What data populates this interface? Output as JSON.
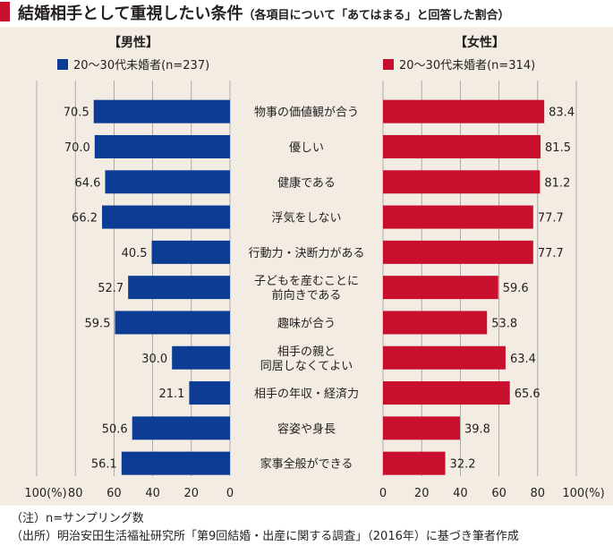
{
  "title": "結婚相手として重視したい条件",
  "subtitle": "（各項目について「あてはまる」と回答した割合）",
  "colors": {
    "male": "#0c3c94",
    "female": "#c8102e",
    "panel": "#f3ece3",
    "accent": "#c8102e"
  },
  "chart_data": {
    "type": "bar",
    "orientation": "horizontal-butterfly",
    "categories": [
      "物事の価値観が合う",
      "優しい",
      "健康である",
      "浮気をしない",
      "行動力・決断力がある",
      "子どもを産むことに\n前向きである",
      "趣味が合う",
      "相手の親と\n同居しなくてよい",
      "相手の年収・経済力",
      "容姿や身長",
      "家事全般ができる"
    ],
    "series": [
      {
        "name": "20〜30代未婚者(n=237)",
        "group": "【男性】",
        "values": [
          70.5,
          70.0,
          64.6,
          66.2,
          40.5,
          52.7,
          59.5,
          30.0,
          21.1,
          50.6,
          56.1
        ]
      },
      {
        "name": "20〜30代未婚者(n=314)",
        "group": "【女性】",
        "values": [
          83.4,
          81.5,
          81.2,
          77.7,
          77.7,
          59.6,
          53.8,
          63.4,
          65.6,
          39.8,
          32.2
        ]
      }
    ],
    "value_labels": {
      "male": [
        "70.5",
        "70.0",
        "64.6",
        "66.2",
        "40.5",
        "52.7",
        "59.5",
        "30.0",
        "21.1",
        "50.6",
        "56.1"
      ],
      "female": [
        "83.4",
        "81.5",
        "81.2",
        "77.7",
        "77.7",
        "59.6",
        "53.8",
        "63.4",
        "65.6",
        "39.8",
        "32.2"
      ]
    },
    "xlim": [
      0,
      100
    ],
    "male_ticks": [
      "100(%)",
      "80",
      "60",
      "40",
      "20",
      "0"
    ],
    "female_ticks": [
      "0",
      "20",
      "40",
      "60",
      "80",
      "100(%)"
    ],
    "grid": true,
    "legend": "top"
  },
  "notes": {
    "note": "（注）n=サンプリング数",
    "source": "（出所）明治安田生活福祉研究所「第9回結婚・出産に関する調査」（2016年）に基づき筆者作成"
  }
}
